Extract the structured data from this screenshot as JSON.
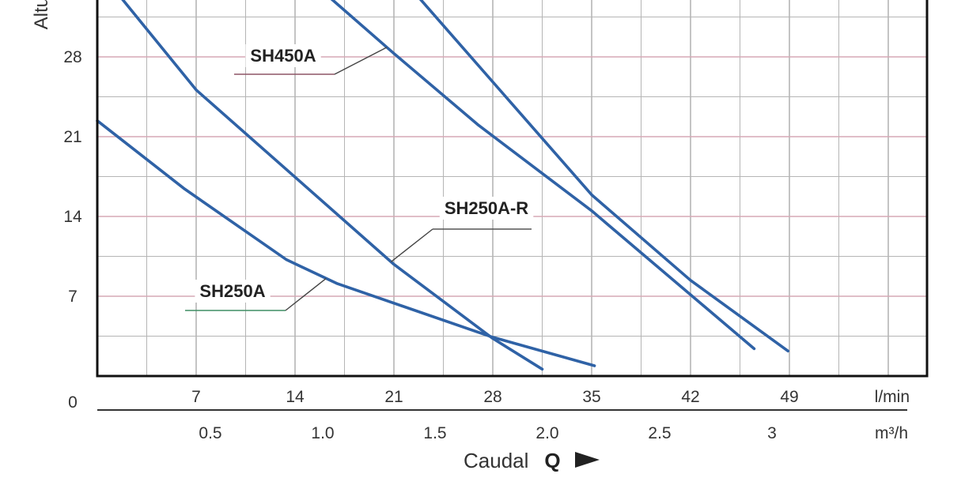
{
  "chart_data": {
    "type": "line",
    "xlabel": "Caudal",
    "xlabel_symbol": "Q",
    "ylabel_fragment": "Altu",
    "x_unit": "l/min",
    "x2_unit": "m³/h",
    "y_origin_label": "0",
    "xlim": [
      0,
      52.4
    ],
    "ylim": [
      0,
      35
    ],
    "x_ticks": [
      "7",
      "14",
      "21",
      "28",
      "35",
      "42",
      "49"
    ],
    "x2_ticks": [
      "0.5",
      "1.0",
      "1.5",
      "2.0",
      "2.5",
      "3"
    ],
    "y_ticks": [
      "7",
      "14",
      "21",
      "28"
    ],
    "grid": true,
    "colors": {
      "series": "#2f62a6",
      "frame": "#111111",
      "grid": "#b5b5b5",
      "grid_accent": "#d6a9b6"
    },
    "series": [
      {
        "name": "SH250A",
        "points": [
          [
            0,
            22.4
          ],
          [
            6.2,
            16.4
          ],
          [
            13.4,
            10.2
          ],
          [
            17,
            8.1
          ],
          [
            28,
            3.4
          ],
          [
            35.2,
            0.9
          ]
        ]
      },
      {
        "name": "SH250A-R",
        "points": [
          [
            0.5,
            35
          ],
          [
            7,
            25.1
          ],
          [
            21,
            9.8
          ],
          [
            28,
            3.3
          ],
          [
            31.5,
            0.6
          ]
        ]
      },
      {
        "name": "SH450A",
        "points": [
          [
            14.8,
            35
          ],
          [
            21,
            28.3
          ],
          [
            27,
            22
          ],
          [
            35,
            14.5
          ],
          [
            46.5,
            2.4
          ]
        ]
      },
      {
        "name": "",
        "points": [
          [
            21.5,
            35
          ],
          [
            35,
            15.9
          ],
          [
            42,
            8.4
          ],
          [
            48.9,
            2.2
          ]
        ]
      }
    ],
    "annotations": [
      {
        "text": "SH450A",
        "series": "SH450A",
        "at_x": 20.5
      },
      {
        "text": "SH250A-R",
        "series": "SH250A-R",
        "at_x": 20.8
      },
      {
        "text": "SH250A",
        "series": "SH250A",
        "at_x": 16.2
      }
    ]
  }
}
